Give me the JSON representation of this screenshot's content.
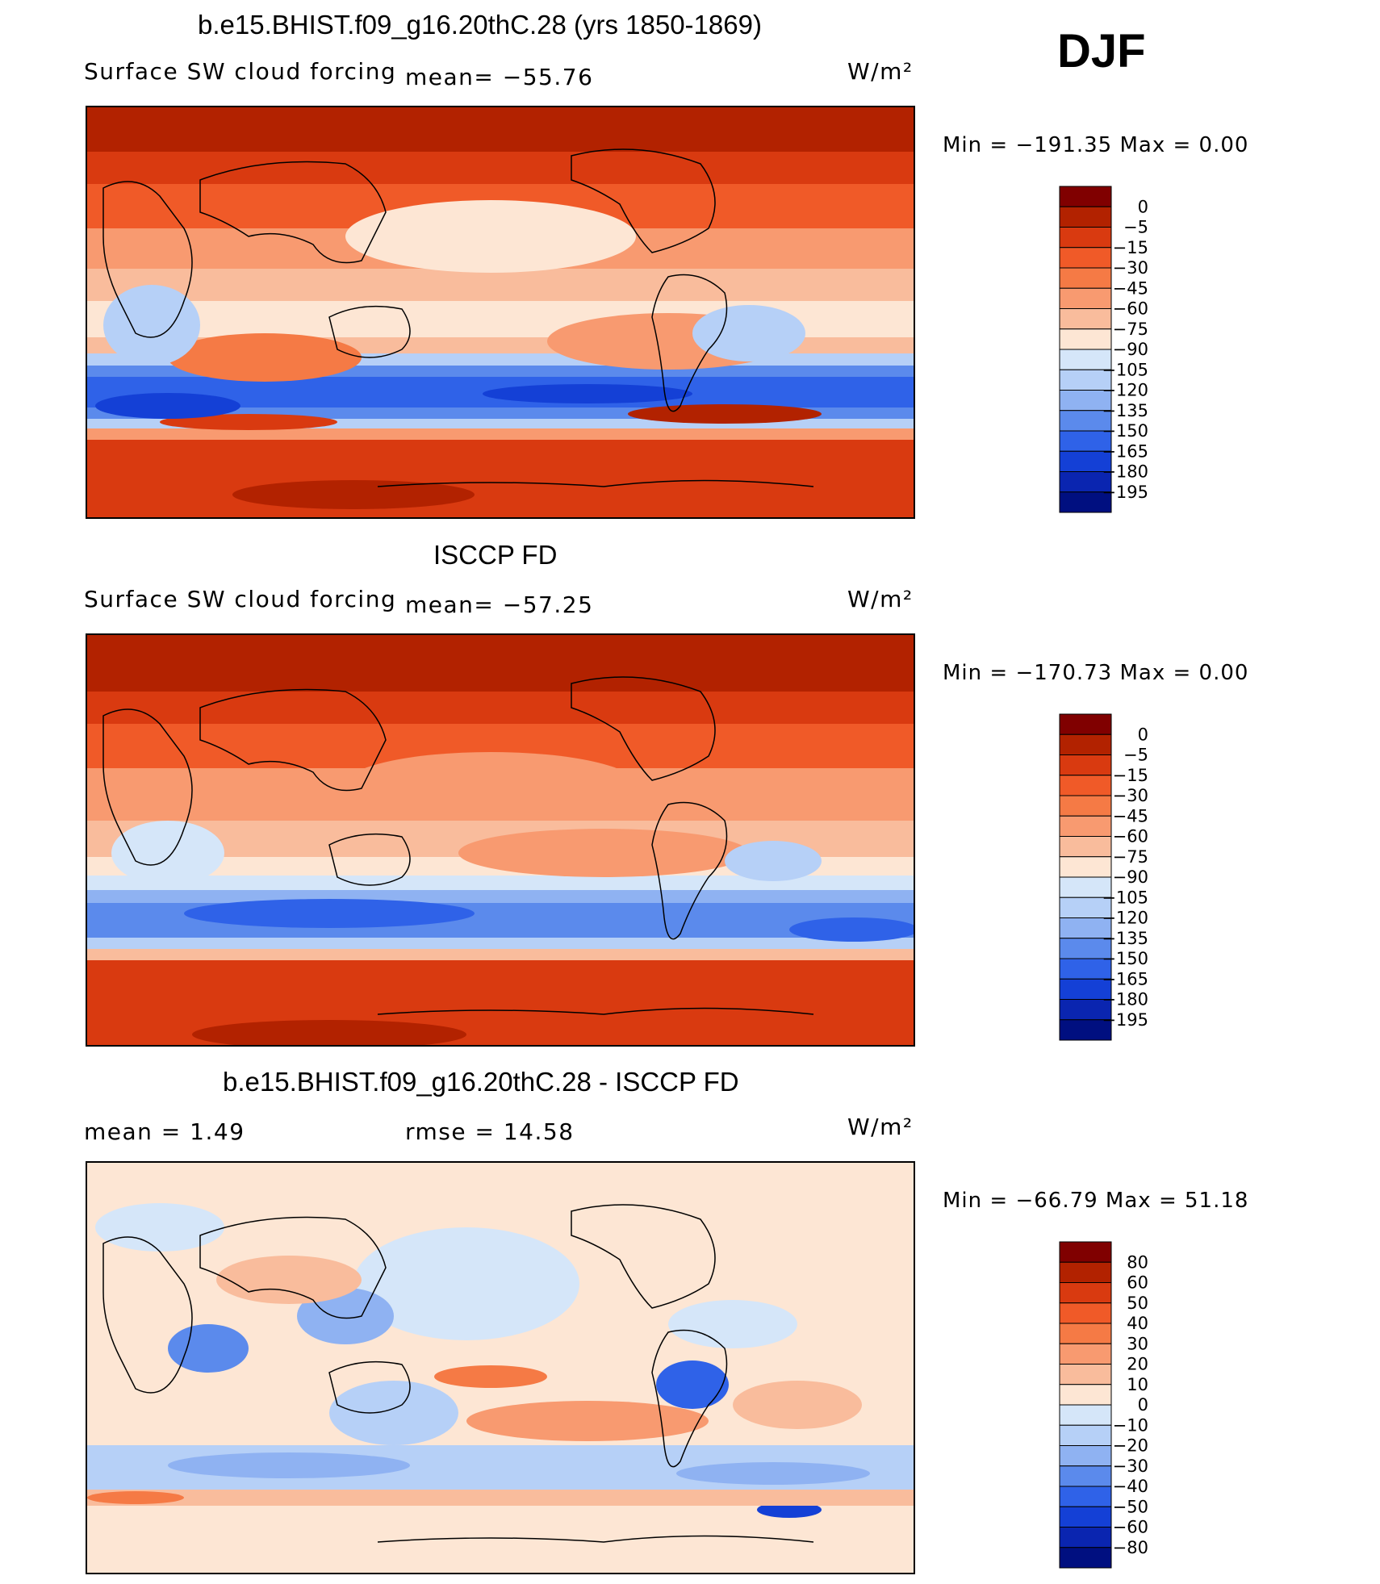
{
  "season": "DJF",
  "panels": [
    {
      "id": "model",
      "title": "b.e15.BHIST.f09_g16.20thC.28 (yrs 1850-1869)",
      "variable": "Surface SW cloud forcing",
      "stat_left": "",
      "stat_mid": "mean=  −55.76",
      "units": "W/m²",
      "minmax": "Min  =  −191.35  Max  =      0.00",
      "colorbar_levels": [
        "0",
        "−5",
        "−15",
        "−30",
        "−45",
        "−60",
        "−75",
        "−90",
        "−105",
        "−120",
        "−135",
        "−150",
        "−165",
        "−180",
        "−195"
      ]
    },
    {
      "id": "obs",
      "title": "ISCCP FD",
      "variable": "Surface SW cloud forcing",
      "stat_left": "",
      "stat_mid": "mean=  −57.25",
      "units": "W/m²",
      "minmax": "Min  =  −170.73  Max  =      0.00",
      "colorbar_levels": [
        "0",
        "−5",
        "−15",
        "−30",
        "−45",
        "−60",
        "−75",
        "−90",
        "−105",
        "−120",
        "−135",
        "−150",
        "−165",
        "−180",
        "−195"
      ]
    },
    {
      "id": "diff",
      "title": "b.e15.BHIST.f09_g16.20thC.28 - ISCCP FD",
      "variable": "",
      "stat_left": "mean  =     1.49",
      "stat_mid": "rmse  =    14.58",
      "units": "W/m²",
      "minmax": "Min  =  −66.79  Max  =    51.18",
      "colorbar_levels": [
        "80",
        "60",
        "50",
        "40",
        "30",
        "20",
        "10",
        "0",
        "−10",
        "−20",
        "−30",
        "−40",
        "−50",
        "−60",
        "−80"
      ]
    }
  ],
  "colors": {
    "scale": [
      "#800000",
      "#b22200",
      "#d93a10",
      "#f05a28",
      "#f57a45",
      "#f89a70",
      "#f9bc9c",
      "#fde6d4",
      "#d5e6f9",
      "#b6d0f7",
      "#8fb2f2",
      "#5b8aec",
      "#2f62e8",
      "#1440d6",
      "#0a25b0",
      "#000f80"
    ]
  },
  "chart_data": [
    {
      "type": "heatmap",
      "title": "b.e15.BHIST.f09_g16.20thC.28 (yrs 1850-1869)",
      "subtitle": "Surface SW cloud forcing",
      "units": "W/m2",
      "season": "DJF",
      "mean": -55.76,
      "min": -191.35,
      "max": 0.0,
      "levels": [
        0,
        -5,
        -15,
        -30,
        -45,
        -60,
        -75,
        -90,
        -105,
        -120,
        -135,
        -150,
        -165,
        -180,
        -195
      ],
      "description_by_zone": {
        "arctic": "0 to -15",
        "northern_midlatitudes": "-30 to -75",
        "tropics": "-60 to -105",
        "southern_ocean_storm_track": "-135 to -195",
        "antarctica": "0 to -15"
      }
    },
    {
      "type": "heatmap",
      "title": "ISCCP FD",
      "subtitle": "Surface SW cloud forcing",
      "units": "W/m2",
      "season": "DJF",
      "mean": -57.25,
      "min": -170.73,
      "max": 0.0,
      "levels": [
        0,
        -5,
        -15,
        -30,
        -45,
        -60,
        -75,
        -90,
        -105,
        -120,
        -135,
        -150,
        -165,
        -180,
        -195
      ],
      "description_by_zone": {
        "arctic": "0 to -15",
        "northern_midlatitudes": "-30 to -60",
        "tropics": "-60 to -105",
        "southern_ocean_storm_track": "-120 to -165",
        "antarctica": "-5 to -15"
      }
    },
    {
      "type": "heatmap",
      "title": "b.e15.BHIST.f09_g16.20thC.28 - ISCCP FD",
      "units": "W/m2",
      "season": "DJF",
      "mean": 1.49,
      "rmse": 14.58,
      "min": -66.79,
      "max": 51.18,
      "levels": [
        80,
        60,
        50,
        40,
        30,
        20,
        10,
        0,
        -10,
        -20,
        -30,
        -40,
        -50,
        -60,
        -80
      ],
      "description_by_zone": {
        "arctic": "-10 to 10",
        "northern_pacific": "-10 to -20",
        "tropics": "-40 to 40",
        "southern_ocean_storm_track": "-20 to -50",
        "antarctic_coast": "10 to 30"
      }
    }
  ]
}
